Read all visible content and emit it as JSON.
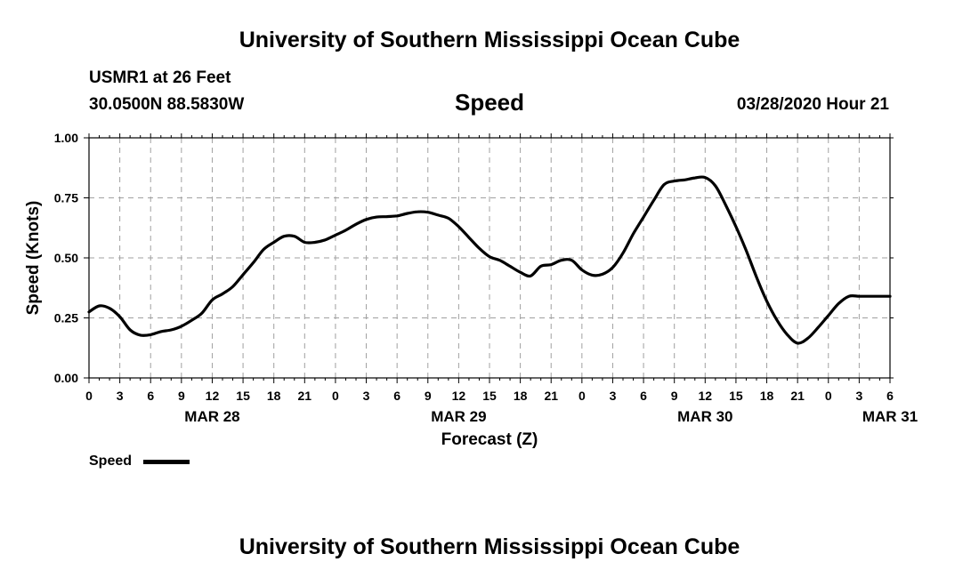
{
  "header": {
    "title": "University of Southern Mississippi Ocean Cube",
    "station": "USMR1 at 26 Feet",
    "coords": "30.0500N 88.5830W",
    "timestamp": "03/28/2020 Hour 21"
  },
  "footer": {
    "title": "University of Southern Mississippi Ocean Cube"
  },
  "legend": {
    "label": "Speed"
  },
  "colors": {
    "line": "#000000",
    "grid": "#a0a0a0",
    "axis": "#000000"
  },
  "chart_data": {
    "type": "line",
    "title": "Speed",
    "xlabel": "Forecast (Z)",
    "ylabel": "Speed (Knots)",
    "xlim": [
      0,
      78
    ],
    "ylim": [
      0,
      1
    ],
    "grid": true,
    "legend_position": "bottom-left",
    "y_ticks": [
      0,
      0.25,
      0.5,
      0.75,
      1
    ],
    "y_tick_labels": [
      "0.00",
      "0.25",
      "0.50",
      "0.75",
      "1.00"
    ],
    "x_ticks": [
      0,
      3,
      6,
      9,
      12,
      15,
      18,
      21,
      24,
      27,
      30,
      33,
      36,
      39,
      42,
      45,
      48,
      51,
      54,
      57,
      60,
      63,
      66,
      69,
      72,
      75,
      78
    ],
    "x_tick_labels": [
      "0",
      "3",
      "6",
      "9",
      "12",
      "15",
      "18",
      "21",
      "0",
      "3",
      "6",
      "9",
      "12",
      "15",
      "18",
      "21",
      "0",
      "3",
      "6",
      "9",
      "12",
      "15",
      "18",
      "21",
      "0",
      "3",
      "6"
    ],
    "date_labels": [
      {
        "hour": 12,
        "label": "MAR 28"
      },
      {
        "hour": 36,
        "label": "MAR 29"
      },
      {
        "hour": 60,
        "label": "MAR 30"
      },
      {
        "hour": 78,
        "label": "MAR 31"
      }
    ],
    "series": [
      {
        "name": "Speed",
        "x": [
          0,
          1,
          2,
          3,
          4,
          5,
          6,
          7,
          8,
          9,
          10,
          11,
          12,
          13,
          14,
          15,
          16,
          17,
          18,
          19,
          20,
          21,
          22,
          23,
          24,
          25,
          26,
          27,
          28,
          29,
          30,
          31,
          32,
          33,
          34,
          35,
          36,
          37,
          38,
          39,
          40,
          41,
          42,
          43,
          44,
          45,
          46,
          47,
          48,
          49,
          50,
          51,
          52,
          53,
          54,
          55,
          56,
          57,
          58,
          59,
          60,
          61,
          62,
          63,
          64,
          65,
          66,
          67,
          68,
          69,
          70,
          71,
          72,
          73,
          74,
          75,
          76,
          77,
          78
        ],
        "values": [
          0.275,
          0.3,
          0.29,
          0.255,
          0.2,
          0.178,
          0.18,
          0.193,
          0.2,
          0.215,
          0.24,
          0.27,
          0.325,
          0.35,
          0.38,
          0.43,
          0.48,
          0.535,
          0.565,
          0.59,
          0.59,
          0.565,
          0.565,
          0.575,
          0.595,
          0.615,
          0.64,
          0.66,
          0.67,
          0.672,
          0.675,
          0.685,
          0.692,
          0.69,
          0.678,
          0.665,
          0.63,
          0.585,
          0.54,
          0.505,
          0.49,
          0.465,
          0.44,
          0.425,
          0.465,
          0.472,
          0.49,
          0.49,
          0.45,
          0.428,
          0.432,
          0.46,
          0.52,
          0.6,
          0.67,
          0.74,
          0.805,
          0.82,
          0.825,
          0.833,
          0.835,
          0.8,
          0.72,
          0.63,
          0.53,
          0.42,
          0.32,
          0.24,
          0.18,
          0.145,
          0.165,
          0.21,
          0.26,
          0.31,
          0.34,
          0.34,
          0.34,
          0.34,
          0.34
        ]
      }
    ]
  }
}
